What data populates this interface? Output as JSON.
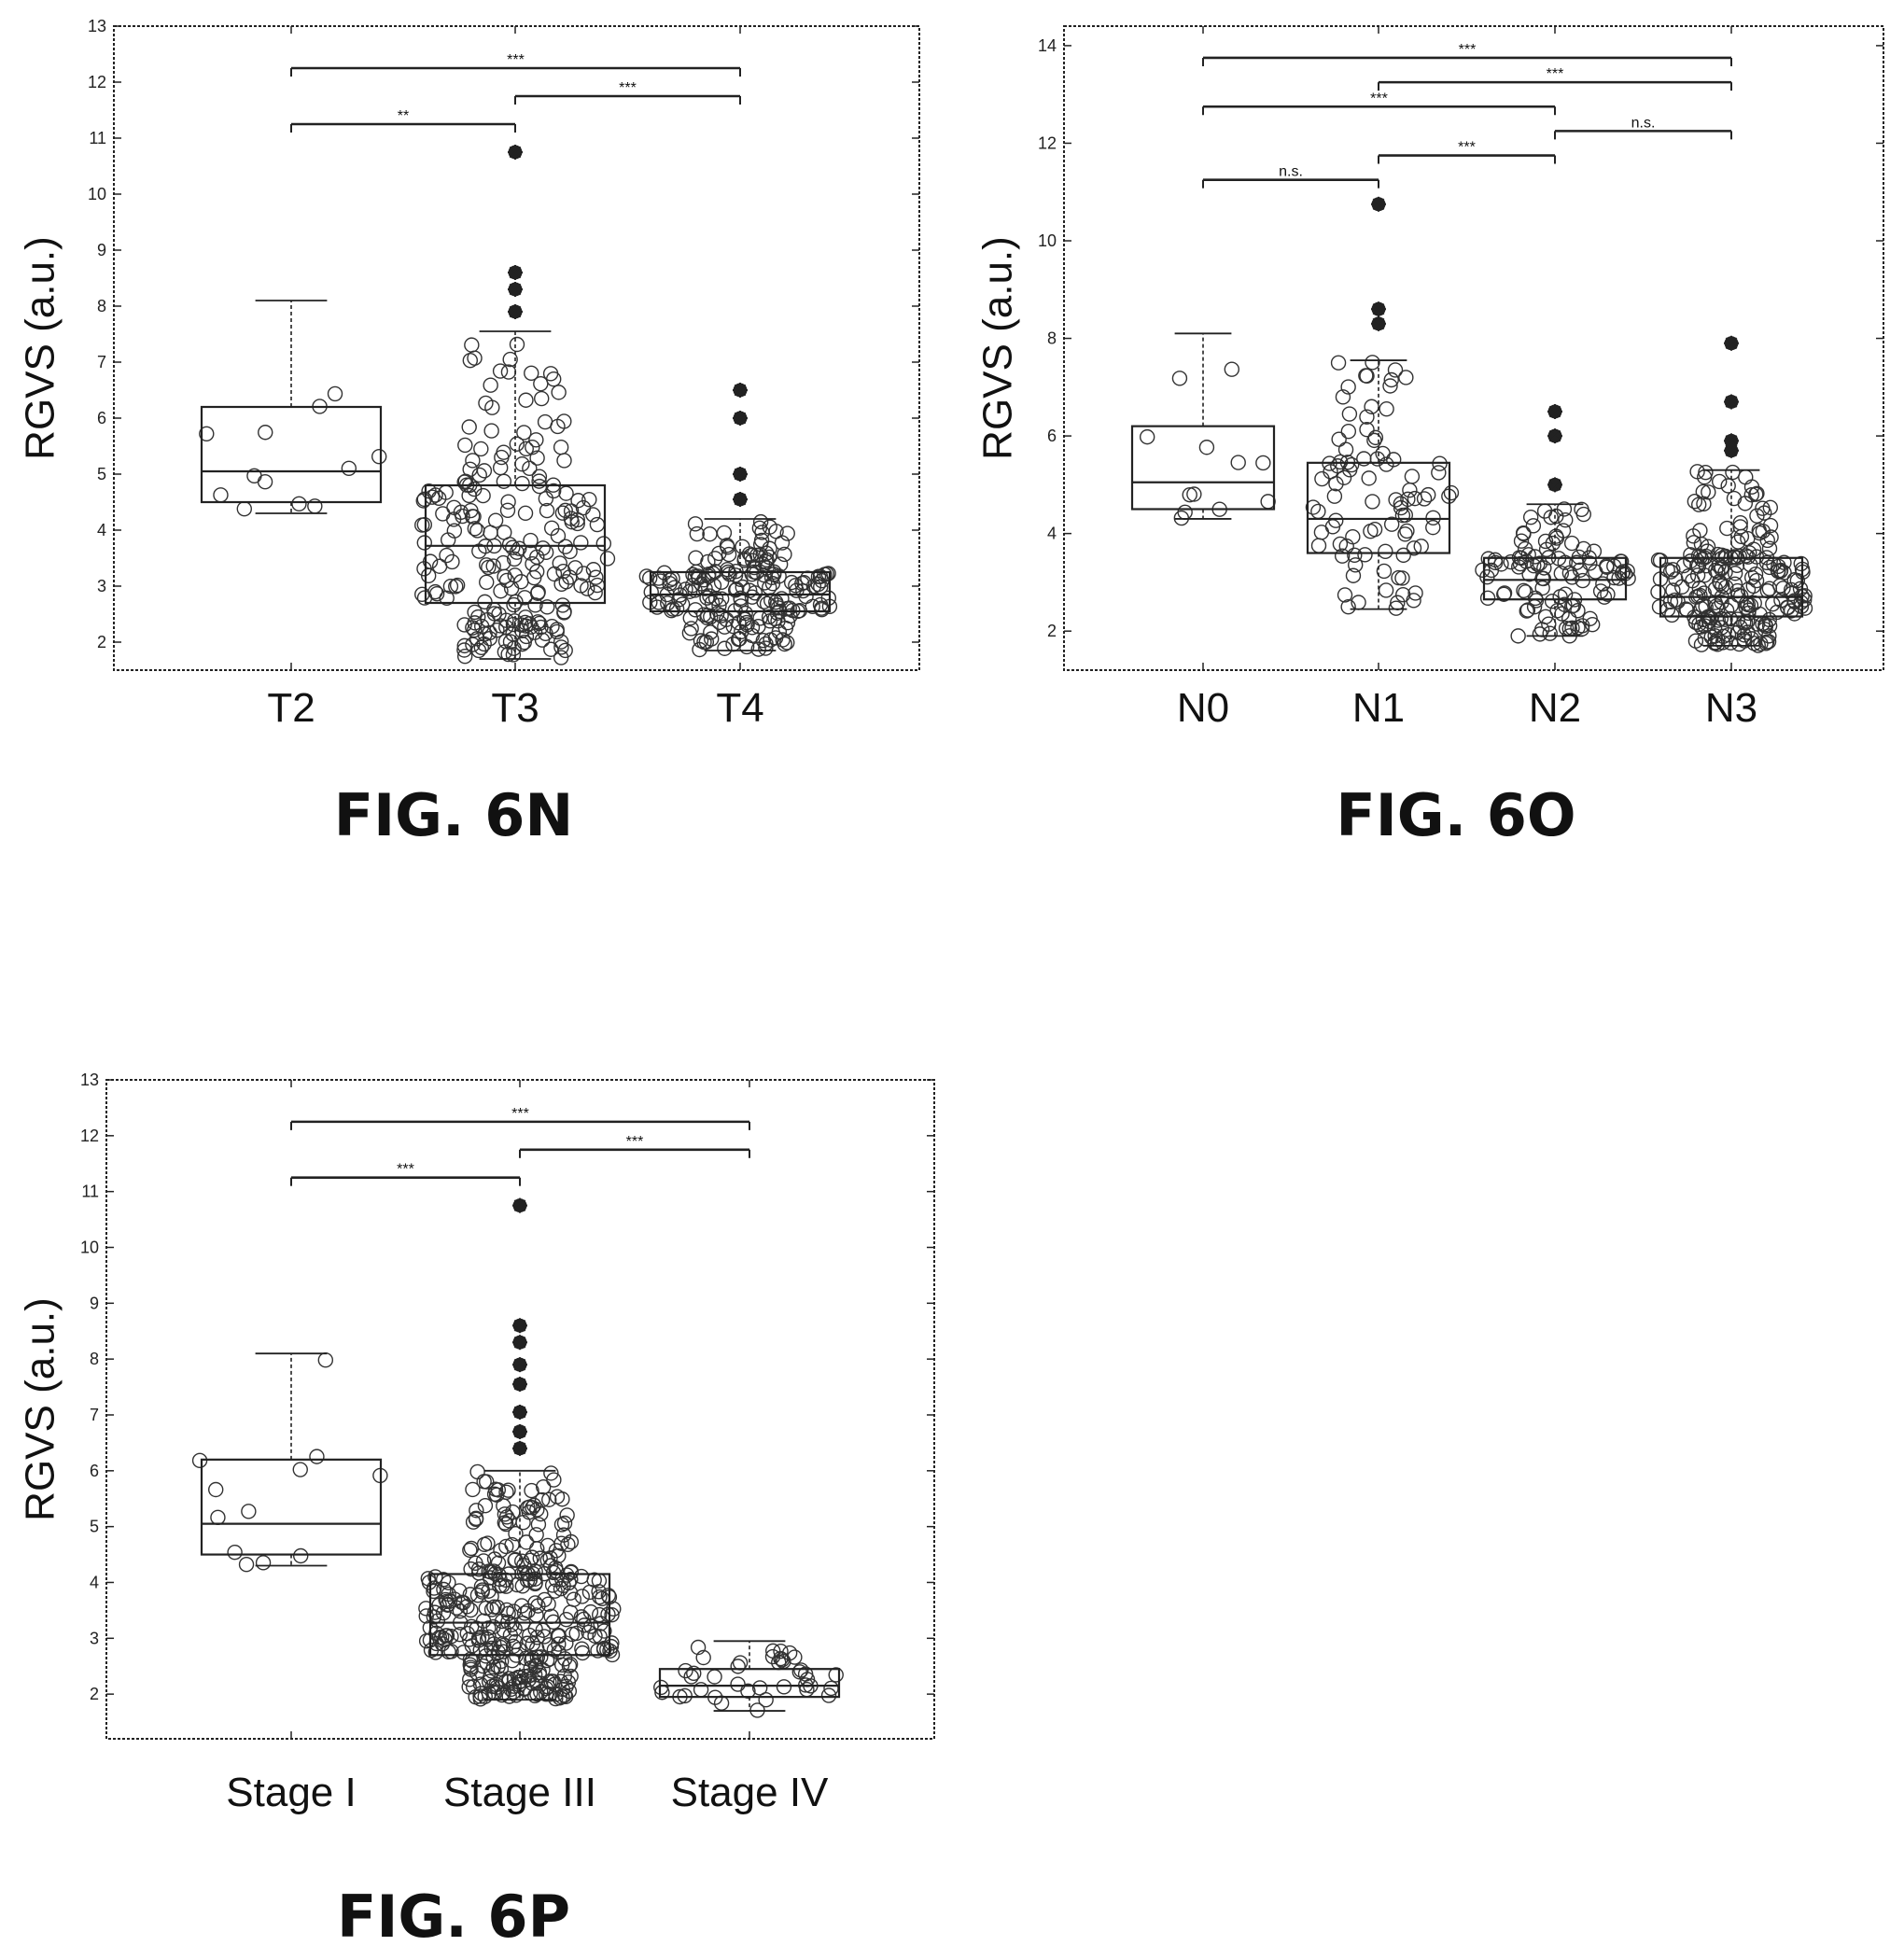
{
  "chart_data": [
    {
      "type": "box",
      "figure_label": "FIG. 6N",
      "ylabel": "RGVS (a.u.)",
      "ylim": [
        1.5,
        13
      ],
      "yticks": [
        2,
        3,
        4,
        5,
        6,
        7,
        8,
        9,
        10,
        11,
        12,
        13
      ],
      "categories": [
        "T2",
        "T3",
        "T4"
      ],
      "boxes": [
        {
          "name": "T2",
          "whisker_low": 4.3,
          "q1": 4.5,
          "median": 5.05,
          "q3": 6.2,
          "whisker_high": 8.1,
          "n_points": 12,
          "outliers": []
        },
        {
          "name": "T3",
          "whisker_low": 1.7,
          "q1": 2.7,
          "median": 3.72,
          "q3": 4.8,
          "whisker_high": 7.55,
          "n_points": 230,
          "outliers": [
            7.9,
            8.3,
            8.6,
            10.75
          ]
        },
        {
          "name": "T4",
          "whisker_low": 1.85,
          "q1": 2.55,
          "median": 2.85,
          "q3": 3.25,
          "whisker_high": 4.2,
          "n_points": 200,
          "outliers": [
            4.55,
            5.0,
            6.0,
            6.5
          ]
        }
      ],
      "significance": [
        {
          "from": "T2",
          "to": "T3",
          "y": 11.25,
          "label": "**"
        },
        {
          "from": "T3",
          "to": "T4",
          "y": 11.75,
          "label": "***"
        },
        {
          "from": "T2",
          "to": "T4",
          "y": 12.25,
          "label": "***"
        }
      ]
    },
    {
      "type": "box",
      "figure_label": "FIG. 6O",
      "ylabel": "RGVS (a.u.)",
      "ylim": [
        1.2,
        14.4
      ],
      "yticks": [
        2,
        4,
        6,
        8,
        10,
        12,
        14
      ],
      "categories": [
        "N0",
        "N1",
        "N2",
        "N3"
      ],
      "boxes": [
        {
          "name": "N0",
          "whisker_low": 4.3,
          "q1": 4.5,
          "median": 5.05,
          "q3": 6.2,
          "whisker_high": 8.1,
          "n_points": 12,
          "outliers": []
        },
        {
          "name": "N1",
          "whisker_low": 2.45,
          "q1": 3.6,
          "median": 4.3,
          "q3": 5.45,
          "whisker_high": 7.55,
          "n_points": 90,
          "outliers": [
            8.3,
            8.6,
            10.75
          ]
        },
        {
          "name": "N2",
          "whisker_low": 1.9,
          "q1": 2.65,
          "median": 3.05,
          "q3": 3.5,
          "whisker_high": 4.6,
          "n_points": 110,
          "outliers": [
            5.0,
            6.0,
            6.5
          ]
        },
        {
          "name": "N3",
          "whisker_low": 1.7,
          "q1": 2.3,
          "median": 2.7,
          "q3": 3.5,
          "whisker_high": 5.3,
          "n_points": 230,
          "outliers": [
            5.7,
            5.9,
            6.7,
            7.9
          ]
        }
      ],
      "significance": [
        {
          "from": "N0",
          "to": "N1",
          "y": 11.25,
          "label": "n.s."
        },
        {
          "from": "N1",
          "to": "N2",
          "y": 11.75,
          "label": "***"
        },
        {
          "from": "N2",
          "to": "N3",
          "y": 12.25,
          "label": "n.s."
        },
        {
          "from": "N0",
          "to": "N2",
          "y": 12.75,
          "label": "***"
        },
        {
          "from": "N1",
          "to": "N3",
          "y": 13.25,
          "label": "***"
        },
        {
          "from": "N0",
          "to": "N3",
          "y": 13.75,
          "label": "***"
        }
      ]
    },
    {
      "type": "box",
      "figure_label": "FIG. 6P",
      "ylabel": "RGVS (a.u.)",
      "ylim": [
        1.2,
        13
      ],
      "yticks": [
        2,
        3,
        4,
        5,
        6,
        7,
        8,
        9,
        10,
        11,
        12,
        13
      ],
      "categories": [
        "Stage I",
        "Stage III",
        "Stage IV"
      ],
      "boxes": [
        {
          "name": "Stage I",
          "whisker_low": 4.3,
          "q1": 4.5,
          "median": 5.05,
          "q3": 6.2,
          "whisker_high": 8.1,
          "n_points": 12,
          "outliers": []
        },
        {
          "name": "Stage III",
          "whisker_low": 1.9,
          "q1": 2.7,
          "median": 3.28,
          "q3": 4.15,
          "whisker_high": 6.0,
          "n_points": 380,
          "outliers": [
            6.4,
            6.7,
            7.05,
            7.55,
            7.9,
            8.3,
            8.6,
            10.75
          ]
        },
        {
          "name": "Stage IV",
          "whisker_low": 1.7,
          "q1": 1.95,
          "median": 2.15,
          "q3": 2.45,
          "whisker_high": 2.95,
          "n_points": 40,
          "outliers": []
        }
      ],
      "significance": [
        {
          "from": "Stage I",
          "to": "Stage III",
          "y": 11.25,
          "label": "***"
        },
        {
          "from": "Stage III",
          "to": "Stage IV",
          "y": 11.75,
          "label": "***"
        },
        {
          "from": "Stage I",
          "to": "Stage IV",
          "y": 12.25,
          "label": "***"
        }
      ]
    }
  ]
}
